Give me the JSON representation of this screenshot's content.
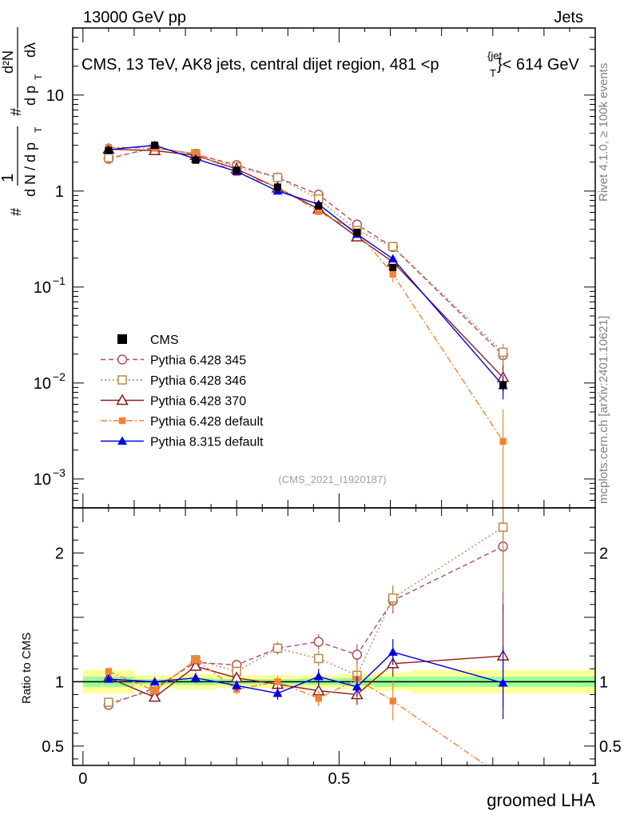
{
  "header": {
    "left": "13000 GeV pp",
    "right": "Jets",
    "title": "CMS, 13 TeV, AK8 jets, central dijet region, 481 <p",
    "title_sub": "T",
    "title_sup": "{jet",
    "title_tail": "}< 614 GeV"
  },
  "side": {
    "rivet": "Rivet 4.1.0, ≥ 100k events",
    "mcplots": "mcplots.cern.ch [arXiv:2401.10621]"
  },
  "watermark": "(CMS_2021_I1920187)",
  "yaxis": {
    "label_parts": [
      "#",
      "1",
      "d N / d p",
      "T",
      "#",
      "d²N",
      "d p",
      "T",
      "dλ"
    ],
    "ratio_label": "Ratio to CMS"
  },
  "xaxis": {
    "label": "groomed LHA"
  },
  "chart_data": {
    "type": "line",
    "x": [
      0.05,
      0.14,
      0.22,
      0.3,
      0.38,
      0.46,
      0.535,
      0.605,
      0.82
    ],
    "xlim": [
      -0.02,
      1.0
    ],
    "upper": {
      "yscale": "log",
      "ylim": [
        0.0005,
        50
      ],
      "ticks": [
        {
          "v": 0.001,
          "label": "10",
          "exp": "−3"
        },
        {
          "v": 0.01,
          "label": "10",
          "exp": "−2"
        },
        {
          "v": 0.1,
          "label": "10",
          "exp": "−1"
        },
        {
          "v": 1,
          "label": "1",
          "exp": ""
        },
        {
          "v": 10,
          "label": "10",
          "exp": ""
        }
      ]
    },
    "lower": {
      "ylim": [
        0.35,
        2.35
      ],
      "ticks": [
        {
          "v": 0.5,
          "label": "0.5"
        },
        {
          "v": 1,
          "label": "1"
        },
        {
          "v": 2,
          "label": "2"
        }
      ]
    },
    "xticks": [
      {
        "v": 0,
        "label": "0"
      },
      {
        "v": 0.5,
        "label": "0.5"
      },
      {
        "v": 1,
        "label": "1"
      }
    ],
    "band": {
      "edges": [
        0.0,
        0.1,
        0.18,
        0.26,
        0.34,
        0.42,
        0.5,
        0.57,
        0.64,
        1.0
      ],
      "total": [
        0.09,
        0.05,
        0.06,
        0.05,
        0.05,
        0.05,
        0.06,
        0.07,
        0.09
      ],
      "stat": [
        0.04,
        0.02,
        0.025,
        0.02,
        0.02,
        0.025,
        0.03,
        0.04,
        0.04
      ],
      "total_color": "#ffff99",
      "stat_color": "#99ff99"
    },
    "data": {
      "name": "CMS",
      "color": "#000000",
      "values": [
        2.65,
        3.0,
        2.1,
        1.65,
        1.1,
        0.7,
        0.37,
        0.16,
        0.0095
      ],
      "errors": [
        0.08,
        0.1,
        0.07,
        0.05,
        0.04,
        0.03,
        0.02,
        0.01,
        0.0012
      ]
    },
    "series": [
      {
        "name": "Pythia 6.428 345",
        "color": "#b24c5c",
        "dash": "6,4",
        "marker": "open-circle",
        "ratio": [
          0.82,
          0.95,
          1.15,
          1.13,
          1.26,
          1.31,
          1.21,
          1.63,
          2.05
        ],
        "ratio_err": [
          0.03,
          0.03,
          0.04,
          0.04,
          0.05,
          0.06,
          0.08,
          0.1,
          0.5
        ]
      },
      {
        "name": "Pythia 6.428 346",
        "color": "#b88a4a",
        "dash": "2,3",
        "marker": "open-square",
        "ratio": [
          0.84,
          0.93,
          1.17,
          1.08,
          1.26,
          1.18,
          1.05,
          1.65,
          2.2
        ],
        "ratio_err": [
          0.03,
          0.03,
          0.04,
          0.04,
          0.05,
          0.06,
          0.08,
          0.1,
          0.5
        ]
      },
      {
        "name": "Pythia 6.428 370",
        "color": "#8b1a1a",
        "dash": "",
        "marker": "open-triangle",
        "ratio": [
          1.03,
          0.88,
          1.12,
          1.03,
          0.98,
          0.93,
          0.9,
          1.14,
          1.2
        ],
        "ratio_err": [
          0.03,
          0.03,
          0.04,
          0.04,
          0.05,
          0.06,
          0.08,
          0.1,
          0.4
        ]
      },
      {
        "name": "Pythia 6.428 default",
        "color": "#f58231",
        "dash": "8,3,2,3",
        "marker": "filled-square",
        "ratio": [
          1.08,
          0.93,
          1.17,
          0.94,
          1.0,
          0.87,
          1.02,
          0.85,
          0.26
        ],
        "ratio_err": [
          0.03,
          0.03,
          0.04,
          0.04,
          0.05,
          0.06,
          0.08,
          0.15,
          0.3
        ]
      },
      {
        "name": "Pythia 8.315 default",
        "color": "#0000e6",
        "dash": "",
        "marker": "filled-triangle",
        "ratio": [
          1.02,
          1.0,
          1.03,
          0.97,
          0.91,
          1.04,
          0.96,
          1.23,
          0.99
        ],
        "ratio_err": [
          0.03,
          0.03,
          0.04,
          0.04,
          0.05,
          0.06,
          0.08,
          0.1,
          0.28
        ]
      }
    ],
    "legend_position": "middle-left"
  }
}
